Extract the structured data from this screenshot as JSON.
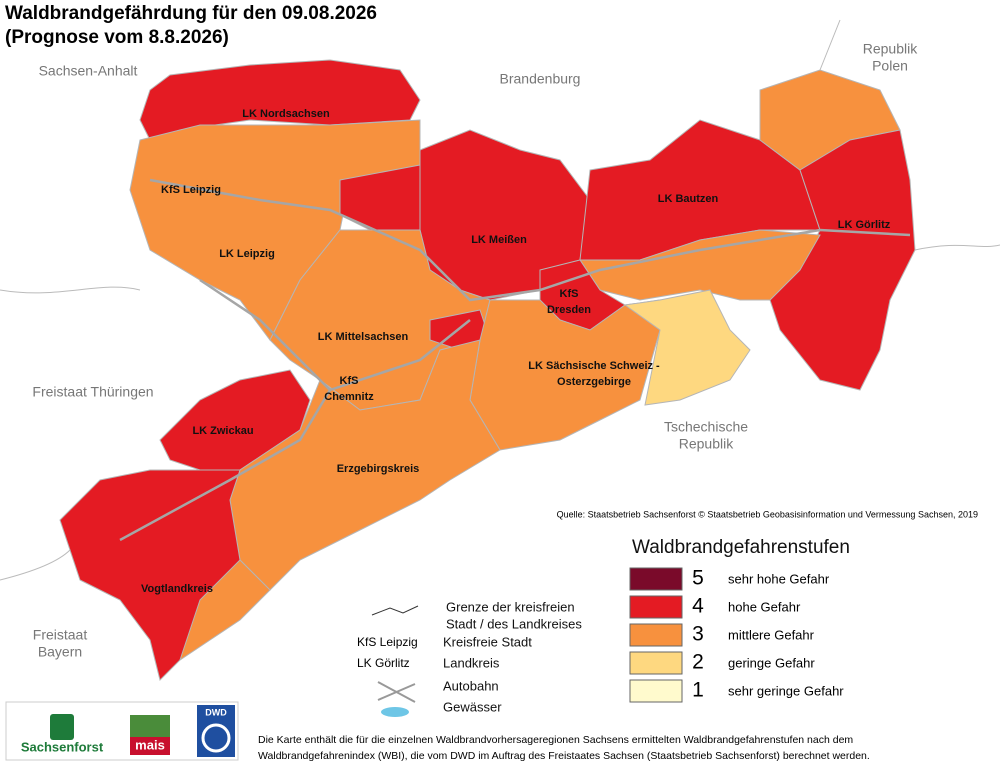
{
  "header": {
    "title_lines": [
      "Waldbrandgefährdung  für den  09.08.2026",
      "(Prognose vom 8.8.2026)"
    ]
  },
  "neighbors": [
    [
      "Sachsen-Anhalt"
    ],
    [
      "Brandenburg"
    ],
    [
      "Republik",
      "Polen"
    ],
    [
      "Freistaat Thüringen"
    ],
    [
      "Tschechische",
      "Republik"
    ],
    [
      "Freistaat",
      "Bayern"
    ]
  ],
  "districts": [
    [
      "LK Nordsachsen"
    ],
    [
      "KfS Leipzig"
    ],
    [
      "LK Leipzig"
    ],
    [
      "LK Meißen"
    ],
    [
      "LK Bautzen"
    ],
    [
      "LK Görlitz"
    ],
    [
      "KfS",
      "Dresden"
    ],
    [
      "LK Mittelsachsen"
    ],
    [
      "LK Sächsische Schweiz -",
      "Osterzgebirge"
    ],
    [
      "KfS",
      "Chemnitz"
    ],
    [
      "LK Zwickau"
    ],
    [
      "Erzgebirgskreis"
    ],
    [
      "Vogtlandkreis"
    ]
  ],
  "zone_levels": [
    4,
    3,
    4,
    4,
    4,
    3,
    4,
    3,
    4,
    3,
    4,
    3,
    2,
    4,
    3,
    4,
    3
  ],
  "source": "Quelle: Staatsbetrieb Sachsenforst  © Staatsbetrieb Geobasisinformation und Vermessung Sachsen, 2019",
  "legend": {
    "title": "Waldbrandgefahrenstufen",
    "levels": [
      {
        "value": 5,
        "label": "sehr hohe Gefahr",
        "color": "#7a0a2a"
      },
      {
        "value": 4,
        "label": "hohe Gefahr",
        "color": "#e41b23"
      },
      {
        "value": 3,
        "label": "mittlere Gefahr",
        "color": "#f7913e"
      },
      {
        "value": 2,
        "label": "geringe Gefahr",
        "color": "#fed880"
      },
      {
        "value": 1,
        "label": "sehr geringe Gefahr",
        "color": "#fffacd"
      }
    ]
  },
  "key": {
    "boundary": [
      "Grenze der kreisfreien",
      "Stadt / des Landkreises"
    ],
    "city_example": "KfS Leipzig",
    "city": "Kreisfreie Stadt",
    "county_example": "LK Görlitz",
    "county": "Landkreis",
    "motorway": "Autobahn",
    "water": "Gewässer"
  },
  "logos": [
    "Sachsenforst",
    "mais",
    "DWD"
  ],
  "footnote": [
    "Die Karte enthält die für die einzelnen Waldbrandvorhersageregionen Sachsens ermittelten Waldbrandgefahrenstufen nach dem",
    "Waldbrandgefahrenindex (WBI), die vom DWD im Auftrag des Freistaates Sachsen (Staatsbetrieb Sachsenforst) berechnet werden."
  ]
}
